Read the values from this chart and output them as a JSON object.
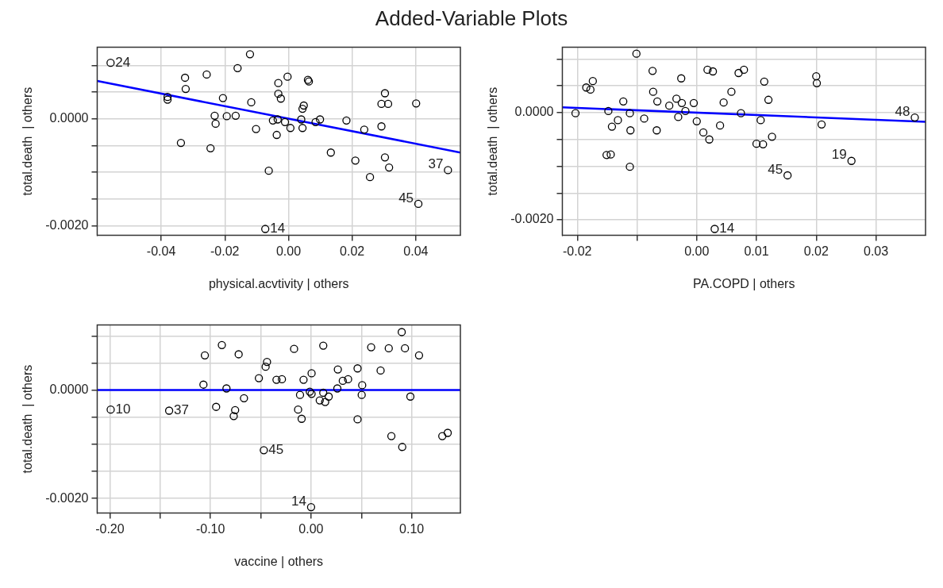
{
  "chart_data": [
    {
      "type": "scatter",
      "title": "Added-Variable Plots",
      "xlabel": "physical.acvtivity | others",
      "ylabel": "total.death  | others",
      "xlim": [
        -0.0601,
        0.054
      ],
      "ylim": [
        -0.00218,
        0.00134
      ],
      "xticks": [
        -0.04,
        -0.02,
        {
          "value": 0,
          "label": "0.00"
        },
        0.02,
        0.04
      ],
      "yticks": [
        {
          "value": 0.001,
          "label": null
        },
        {
          "value": 0.0005,
          "label": null
        },
        {
          "value": 0,
          "label": "0.0000"
        },
        {
          "value": -0.0005,
          "label": null
        },
        {
          "value": -0.001,
          "label": null
        },
        {
          "value": -0.0015,
          "label": null
        },
        {
          "value": -0.002,
          "label": "-0.0020"
        }
      ],
      "grid": true,
      "marker": "circle",
      "series": [
        {
          "type": "scatter",
          "color": "#000000",
          "x": [
            -0.0559,
            -0.0121,
            -0.016,
            -0.0257,
            -0.0325,
            -0.0323,
            -0.038,
            -0.038,
            -0.0206,
            -0.0117,
            -0.0003,
            -0.0032,
            0.0061,
            0.0064,
            -0.0032,
            -0.0024,
            0.0048,
            0.0044,
            -0.0232,
            -0.0194,
            -0.0166,
            -0.0229,
            -0.0049,
            -0.0034,
            -0.0011,
            0.0006,
            0.0044,
            0.004,
            0.0085,
            0.0099,
            0.0182,
            0.0238,
            0.0292,
            0.0303,
            0.0292,
            0.0313,
            0.0401,
            -0.0102,
            -0.0338,
            -0.0245,
            -0.0037,
            -0.0062,
            0.0133,
            0.021,
            0.0256,
            0.0303,
            0.0316,
            0.0501,
            0.0408,
            -0.0073
          ],
          "values": [
            0.00105,
            0.00121,
            0.00095,
            0.00083,
            0.00077,
            0.00056,
            0.00041,
            0.00036,
            0.00039,
            0.00031,
            0.00079,
            0.00067,
            0.00073,
            0.0007,
            0.00047,
            0.00038,
            0.00025,
            0.00019,
            6e-05,
            5e-05,
            6e-05,
            -9e-05,
            -3e-05,
            -1e-05,
            -6e-05,
            -0.00017,
            -0.00017,
            -1e-05,
            -6e-05,
            -1e-05,
            -3e-05,
            -0.0002,
            -0.00014,
            0.00048,
            0.00028,
            0.00028,
            0.00029,
            -0.00019,
            -0.00045,
            -0.00055,
            -0.0003,
            -0.00097,
            -0.00063,
            -0.00078,
            -0.00109,
            -0.00072,
            -0.00091,
            -0.00096,
            -0.00159,
            -0.00206
          ]
        },
        {
          "type": "line",
          "color": "#0000ff",
          "marker": "none",
          "x": [
            -0.0601,
            0.054
          ],
          "values": [
            0.00071,
            -0.00063
          ]
        }
      ],
      "annotations": [
        {
          "text": "24",
          "x": -0.0559,
          "y": 0.00105
        },
        {
          "text": "37",
          "x": 0.0501,
          "y": -0.00096
        },
        {
          "text": "45",
          "x": 0.0408,
          "y": -0.00159
        },
        {
          "text": "14",
          "x": -0.0073,
          "y": -0.00206
        }
      ]
    },
    {
      "type": "scatter",
      "xlabel": "PA.COPD | others",
      "ylabel": "total.death  | others",
      "xlim": [
        -0.0225,
        0.0383
      ],
      "ylim": [
        -0.00229,
        0.00122
      ],
      "xticks": [
        -0.02,
        {
          "value": -0.01,
          "label": null
        },
        {
          "value": 0,
          "label": "0.00"
        },
        0.01,
        0.02,
        0.03
      ],
      "yticks": [
        {
          "value": 0.001,
          "label": null
        },
        {
          "value": 0.0005,
          "label": null
        },
        {
          "value": 0,
          "label": "0.0000"
        },
        {
          "value": -0.0005,
          "label": null
        },
        {
          "value": -0.001,
          "label": null
        },
        {
          "value": -0.0015,
          "label": null
        },
        {
          "value": -0.002,
          "label": "-0.0020"
        }
      ],
      "grid": true,
      "marker": "circle",
      "series": [
        {
          "type": "scatter",
          "color": "#000000",
          "x": [
            -0.0203,
            -0.0185,
            -0.0178,
            -0.0174,
            -0.0148,
            -0.0142,
            -0.0132,
            -0.0151,
            -0.0144,
            -0.0123,
            -0.0112,
            -0.0111,
            -0.0112,
            -0.0101,
            -0.0088,
            -0.0074,
            -0.0073,
            -0.0066,
            -0.0067,
            -0.0046,
            -0.0034,
            -0.0026,
            -0.0031,
            -0.0025,
            -0.0019,
            -0.0005,
            0,
            0.0011,
            0.0021,
            0.0018,
            0.0027,
            0.0039,
            0.0045,
            0.0058,
            0.007,
            0.0079,
            0.0074,
            0.01,
            0.0111,
            0.0107,
            0.0113,
            0.012,
            0.0126,
            0.0152,
            0.02,
            0.0201,
            0.0209,
            0.0259,
            0.0365,
            0.003
          ],
          "values": [
            -1e-05,
            0.00047,
            0.00043,
            0.00059,
            3e-05,
            -0.00026,
            -0.00014,
            -0.00079,
            -0.00078,
            0.00021,
            -1e-05,
            -0.00033,
            -0.00101,
            0.0011,
            -0.00011,
            0.00078,
            0.00039,
            0.00021,
            -0.00033,
            0.00013,
            0.00026,
            0.00064,
            -8e-05,
            0.00018,
            3e-05,
            0.00018,
            -0.00016,
            -0.00037,
            -0.0005,
            0.0008,
            0.00077,
            -0.00024,
            0.00019,
            0.00039,
            0.00074,
            0.0008,
            -1e-05,
            -0.00058,
            -0.00059,
            -0.00014,
            0.00058,
            0.00024,
            -0.00045,
            -0.00117,
            0.00068,
            0.00055,
            -0.00022,
            -0.0009,
            -9e-05,
            -0.00217
          ]
        },
        {
          "type": "line",
          "color": "#0000ff",
          "marker": "none",
          "x": [
            -0.0225,
            0.0383
          ],
          "values": [
            0.0001,
            -0.00017
          ]
        }
      ],
      "annotations": [
        {
          "text": "14",
          "x": 0.003,
          "y": -0.00217
        },
        {
          "text": "45",
          "x": 0.0152,
          "y": -0.00117
        },
        {
          "text": "19",
          "x": 0.0259,
          "y": -0.0009
        },
        {
          "text": "48",
          "x": 0.0365,
          "y": -9e-05
        }
      ]
    },
    {
      "type": "scatter",
      "xlabel": "vaccine | others",
      "ylabel": "total.death  | others",
      "xlim": [
        -0.2126,
        0.1484
      ],
      "ylim": [
        -0.00227,
        0.0012
      ],
      "xticks": [
        {
          "value": -0.2,
          "label": "-0.20"
        },
        {
          "value": -0.15,
          "label": null
        },
        {
          "value": -0.1,
          "label": "-0.10"
        },
        {
          "value": -0.05,
          "label": null
        },
        {
          "value": 0,
          "label": "0.00"
        },
        {
          "value": 0.05,
          "label": null
        },
        {
          "value": 0.1,
          "label": "0.10"
        }
      ],
      "yticks": [
        {
          "value": 0.001,
          "label": null
        },
        {
          "value": 0.0005,
          "label": null
        },
        {
          "value": 0,
          "label": "0.0000"
        },
        {
          "value": -0.0005,
          "label": null
        },
        {
          "value": -0.001,
          "label": null
        },
        {
          "value": -0.0015,
          "label": null
        },
        {
          "value": -0.002,
          "label": "-0.0020"
        }
      ],
      "grid": true,
      "marker": "circle",
      "series": [
        {
          "type": "scatter",
          "color": "#000000",
          "x": [
            -0.1992,
            -0.1411,
            -0.1056,
            -0.107,
            -0.0887,
            -0.0944,
            -0.0841,
            -0.072,
            -0.0667,
            -0.0755,
            -0.0769,
            -0.0519,
            -0.0452,
            -0.0438,
            -0.0344,
            -0.029,
            -0.047,
            -0.0169,
            -0.0075,
            -0.011,
            -0.0129,
            -0.0094,
            0.0005,
            -0.0013,
            0.0005,
            0.0121,
            0.0086,
            0.014,
            0.0121,
            0.0175,
            0.0266,
            0.0261,
            0.0315,
            0.0368,
            0.0462,
            0.0508,
            0.0503,
            0.0462,
            0.0597,
            0.0691,
            0.0772,
            0.0901,
            0.0933,
            0.1073,
            0.0987,
            0.0798,
            0.0906,
            0.1304,
            0.1358,
            0
          ],
          "values": [
            -0.00036,
            -0.00038,
            0.00064,
            0.0001,
            0.00083,
            -0.00031,
            3e-05,
            0.00066,
            -0.00015,
            -0.00037,
            -0.00048,
            0.00022,
            0.00043,
            0.00052,
            0.00019,
            0.0002,
            -0.00111,
            0.00076,
            0.00019,
            -9e-05,
            -0.00036,
            -0.00053,
            0.00031,
            -3e-05,
            -7e-05,
            0.00082,
            -0.00019,
            -0.00022,
            -5e-05,
            -0.00012,
            0.00038,
            3e-05,
            0.00017,
            0.0002,
            0.0004,
            9e-05,
            -9e-05,
            -0.00054,
            0.00079,
            0.00036,
            0.00077,
            0.00107,
            0.00077,
            0.00064,
            -0.00012,
            -0.00085,
            -0.00105,
            -0.00085,
            -0.00079,
            -0.00216
          ]
        },
        {
          "type": "line",
          "color": "#0000ff",
          "marker": "none",
          "x": [
            -0.2126,
            0.1484
          ],
          "values": [
            0,
            0
          ]
        }
      ],
      "annotations": [
        {
          "text": "10",
          "x": -0.1992,
          "y": -0.00036
        },
        {
          "text": "37",
          "x": -0.1411,
          "y": -0.00038
        },
        {
          "text": "45",
          "x": -0.047,
          "y": -0.00111
        },
        {
          "text": "14",
          "x": 0,
          "y": -0.00216
        }
      ]
    }
  ]
}
